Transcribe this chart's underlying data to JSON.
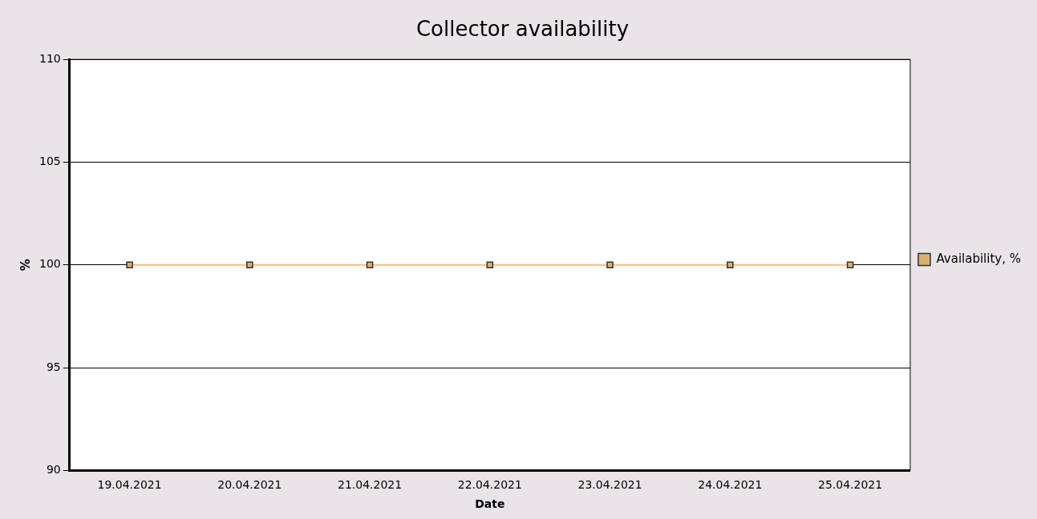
{
  "chart_data": {
    "type": "line",
    "title": "Collector availability",
    "xlabel": "Date",
    "ylabel": "%",
    "categories": [
      "19.04.2021",
      "20.04.2021",
      "21.04.2021",
      "22.04.2021",
      "23.04.2021",
      "24.04.2021",
      "25.04.2021"
    ],
    "series": [
      {
        "name": "Availability, %",
        "color": "#f0c080",
        "values": [
          100,
          100,
          100,
          100,
          100,
          100,
          100
        ]
      }
    ],
    "ylim": [
      90,
      110
    ],
    "yticks": [
      90,
      95,
      100,
      105,
      110
    ],
    "grid": "y",
    "legend": "right",
    "marker": "square",
    "line_style": "solid"
  }
}
